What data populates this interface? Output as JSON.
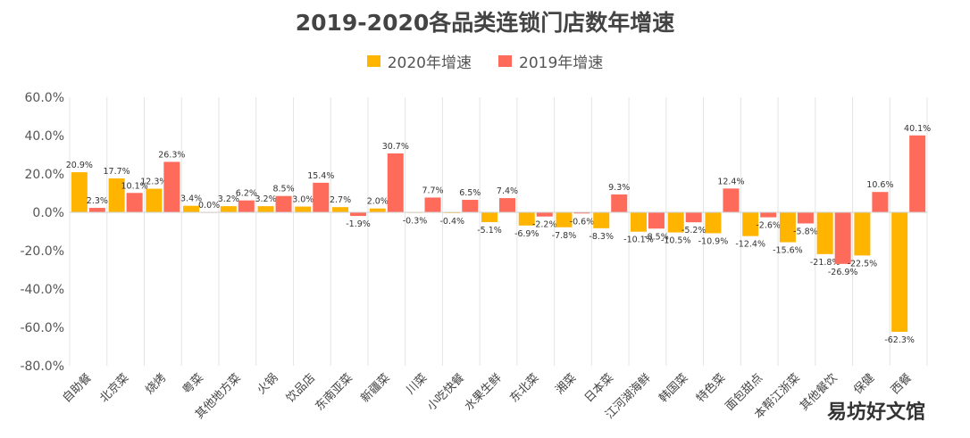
{
  "watermark": "易坊好文馆",
  "chart_data": {
    "type": "bar",
    "title": "2019-2020各品类连锁门店数年增速",
    "xlabel": "",
    "ylabel": "",
    "ylim": [
      -80,
      60
    ],
    "yticks": [
      "60.0%",
      "40.0%",
      "20.0%",
      "0.0%",
      "-20.0%",
      "-40.0%",
      "-60.0%",
      "-80.0%"
    ],
    "ytick_values": [
      60,
      40,
      20,
      0,
      -20,
      -40,
      -60,
      -80
    ],
    "grid": "vertical",
    "legend": "top",
    "categories": [
      "自助餐",
      "北京菜",
      "烧烤",
      "粤菜",
      "其他地方菜",
      "火锅",
      "饮品店",
      "东南亚菜",
      "新疆菜",
      "川菜",
      "小吃快餐",
      "水果生鲜",
      "东北菜",
      "湘菜",
      "日本菜",
      "江河湖海鲜",
      "韩国菜",
      "特色菜",
      "面包甜点",
      "本帮江浙菜",
      "其他餐饮",
      "保健",
      "西餐"
    ],
    "series": [
      {
        "name": "2020年增速",
        "color": "#FFB400",
        "values": [
          20.9,
          17.7,
          12.3,
          3.4,
          3.2,
          3.2,
          3.0,
          2.7,
          2.0,
          -0.3,
          -0.4,
          -5.1,
          -6.9,
          -7.8,
          -8.3,
          -10.1,
          -10.5,
          -10.9,
          -12.4,
          -15.6,
          -21.8,
          -22.5,
          -62.3
        ],
        "labels": [
          "20.9%",
          "17.7%",
          "12.3%",
          "3.4%",
          "3.2%",
          "3.2%",
          "3.0%",
          "2.7%",
          "2.0%",
          "-0.3%",
          "-0.4%",
          "-5.1%",
          "-6.9%",
          "-7.8%",
          "-8.3%",
          "-10.1%",
          "-10.5%",
          "-10.9%",
          "-12.4%",
          "-15.6%",
          "-21.8%",
          "-22.5%",
          "-62.3%"
        ]
      },
      {
        "name": "2019年增速",
        "color": "#FF6B5B",
        "values": [
          2.3,
          10.1,
          26.3,
          0.0,
          6.2,
          8.5,
          15.4,
          -1.9,
          30.7,
          7.7,
          6.5,
          7.4,
          -2.2,
          -0.6,
          9.3,
          -8.5,
          -5.2,
          12.4,
          -2.6,
          -5.8,
          -26.9,
          10.6,
          40.1
        ],
        "labels": [
          "2.3%",
          "10.1%",
          "26.3%",
          "0.0%",
          "6.2%",
          "8.5%",
          "15.4%",
          "-1.9%",
          "30.7%",
          "7.7%",
          "6.5%",
          "7.4%",
          "-2.2%",
          "-0.6%",
          "9.3%",
          "-8.5%",
          "-5.2%",
          "12.4%",
          "-2.6%",
          "-5.8%",
          "-26.9%",
          "10.6%",
          "40.1%"
        ]
      }
    ]
  }
}
